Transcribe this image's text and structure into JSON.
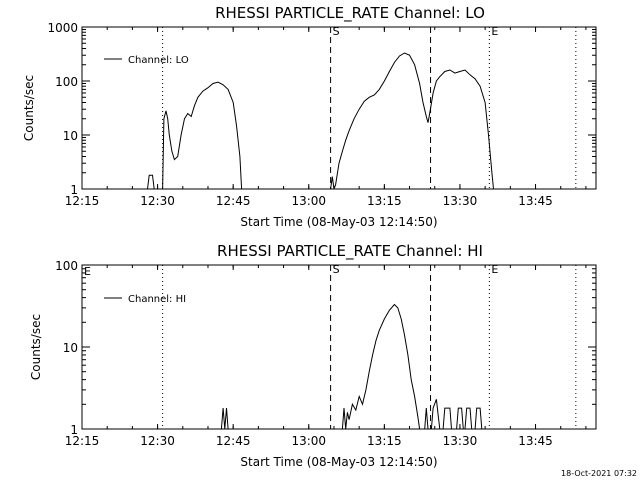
{
  "footer": {
    "timestamp": "18-Oct-2021 07:32"
  },
  "chart_data": [
    {
      "type": "line",
      "title": "RHESSI PARTICLE_RATE Channel: LO",
      "xlabel": "Start Time (08-May-03 12:14:50)",
      "ylabel": "Counts/sec",
      "y_scale": "log",
      "xlim": [
        "12:15",
        "13:57"
      ],
      "ylim": [
        1,
        1000
      ],
      "x_ticks": [
        "12:15",
        "12:30",
        "12:45",
        "13:00",
        "13:15",
        "13:30",
        "13:45"
      ],
      "y_ticks": [
        "1",
        "10",
        "100",
        "1000"
      ],
      "legend": "top-left",
      "series": [
        {
          "name": "Channel: LO",
          "color": "#000000",
          "segments": [
            [
              [
                "12:28:00",
                1
              ],
              [
                "12:28:20",
                1.8
              ],
              [
                "12:29:00",
                1.8
              ],
              [
                "12:29:20",
                1
              ]
            ],
            [
              [
                "12:31:00",
                1
              ],
              [
                "12:31:15",
                20
              ],
              [
                "12:31:40",
                28
              ],
              [
                "12:32:00",
                20
              ],
              [
                "12:32:20",
                10
              ],
              [
                "12:32:50",
                5
              ],
              [
                "12:33:20",
                3.5
              ],
              [
                "12:34:00",
                4
              ],
              [
                "12:34:40",
                10
              ],
              [
                "12:35:20",
                20
              ],
              [
                "12:36:00",
                25
              ],
              [
                "12:36:40",
                22
              ],
              [
                "12:37:20",
                35
              ],
              [
                "12:38:00",
                50
              ],
              [
                "12:39:00",
                65
              ],
              [
                "12:40:00",
                75
              ],
              [
                "12:41:00",
                90
              ],
              [
                "12:42:00",
                95
              ],
              [
                "12:43:00",
                85
              ],
              [
                "12:44:00",
                70
              ],
              [
                "12:45:00",
                40
              ],
              [
                "12:45:40",
                15
              ],
              [
                "12:46:20",
                4
              ],
              [
                "12:46:40",
                1
              ]
            ],
            [
              [
                "13:04:20",
                1
              ],
              [
                "13:04:40",
                1.7
              ],
              [
                "13:05:00",
                1
              ],
              [
                "13:05:20",
                1.2
              ],
              [
                "13:06:00",
                3
              ],
              [
                "13:06:40",
                5
              ],
              [
                "13:07:20",
                8
              ],
              [
                "13:08:00",
                12
              ],
              [
                "13:09:00",
                20
              ],
              [
                "13:10:00",
                30
              ],
              [
                "13:11:00",
                42
              ],
              [
                "13:12:00",
                50
              ],
              [
                "13:13:00",
                55
              ],
              [
                "13:14:00",
                70
              ],
              [
                "13:15:00",
                100
              ],
              [
                "13:16:00",
                150
              ],
              [
                "13:17:00",
                220
              ],
              [
                "13:18:00",
                290
              ],
              [
                "13:19:00",
                330
              ],
              [
                "13:20:00",
                300
              ],
              [
                "13:21:00",
                200
              ],
              [
                "13:22:00",
                90
              ],
              [
                "13:22:40",
                40
              ],
              [
                "13:23:20",
                22
              ],
              [
                "13:23:40",
                17
              ],
              [
                "13:24:00",
                25
              ],
              [
                "13:24:40",
                60
              ],
              [
                "13:25:20",
                100
              ],
              [
                "13:26:00",
                120
              ],
              [
                "13:27:00",
                150
              ],
              [
                "13:28:00",
                160
              ],
              [
                "13:29:00",
                140
              ],
              [
                "13:30:00",
                150
              ],
              [
                "13:31:00",
                160
              ],
              [
                "13:32:00",
                130
              ],
              [
                "13:33:00",
                110
              ],
              [
                "13:34:00",
                80
              ],
              [
                "13:35:00",
                40
              ],
              [
                "13:35:40",
                10
              ],
              [
                "13:36:20",
                2
              ],
              [
                "13:36:40",
                1
              ]
            ]
          ]
        }
      ],
      "vlines": [
        {
          "x": "12:31:00",
          "style": "dotted",
          "label": ""
        },
        {
          "x": "13:04:20",
          "style": "dashed",
          "label": "S"
        },
        {
          "x": "13:24:10",
          "style": "dashed",
          "label": ""
        },
        {
          "x": "13:35:50",
          "style": "dotted",
          "label": "E"
        },
        {
          "x": "13:53:00",
          "style": "dotted",
          "label": ""
        }
      ]
    },
    {
      "type": "line",
      "title": "RHESSI PARTICLE_RATE Channel: HI",
      "xlabel": "Start Time (08-May-03 12:14:50)",
      "ylabel": "Counts/sec",
      "y_scale": "log",
      "xlim": [
        "12:15",
        "13:57"
      ],
      "ylim": [
        1,
        100
      ],
      "x_ticks": [
        "12:15",
        "12:30",
        "12:45",
        "13:00",
        "13:15",
        "13:30",
        "13:45"
      ],
      "y_ticks": [
        "1",
        "10",
        "100"
      ],
      "legend": "top-left",
      "series": [
        {
          "name": "Channel: HI",
          "color": "#000000",
          "segments": [
            [
              [
                "12:42:40",
                1
              ],
              [
                "12:43:00",
                1.8
              ],
              [
                "12:43:20",
                1
              ],
              [
                "12:43:40",
                1.8
              ],
              [
                "12:44:00",
                1
              ]
            ],
            [
              [
                "13:06:40",
                1
              ],
              [
                "13:07:00",
                1.8
              ],
              [
                "13:07:20",
                1
              ],
              [
                "13:07:40",
                1.6
              ],
              [
                "13:08:00",
                1.3
              ],
              [
                "13:08:40",
                2
              ],
              [
                "13:09:20",
                1.7
              ],
              [
                "13:10:00",
                2.5
              ],
              [
                "13:10:40",
                2
              ],
              [
                "13:11:20",
                3
              ],
              [
                "13:12:00",
                5
              ],
              [
                "13:12:40",
                8
              ],
              [
                "13:13:20",
                12
              ],
              [
                "13:14:00",
                16
              ],
              [
                "13:15:00",
                22
              ],
              [
                "13:16:00",
                28
              ],
              [
                "13:17:00",
                33
              ],
              [
                "13:17:40",
                30
              ],
              [
                "13:18:20",
                22
              ],
              [
                "13:19:00",
                14
              ],
              [
                "13:19:40",
                8
              ],
              [
                "13:20:20",
                4
              ],
              [
                "13:21:00",
                2.5
              ],
              [
                "13:21:40",
                1.4
              ],
              [
                "13:22:00",
                1
              ]
            ],
            [
              [
                "13:23:00",
                1
              ],
              [
                "13:23:20",
                1.8
              ],
              [
                "13:23:40",
                1
              ],
              [
                "13:24:20",
                1
              ],
              [
                "13:24:40",
                1.8
              ],
              [
                "13:25:20",
                2.3
              ],
              [
                "13:25:40",
                1.5
              ],
              [
                "13:26:00",
                1
              ]
            ],
            [
              [
                "13:26:40",
                1
              ],
              [
                "13:27:00",
                1.8
              ],
              [
                "13:28:00",
                1.8
              ],
              [
                "13:28:20",
                1
              ]
            ],
            [
              [
                "13:29:20",
                1
              ],
              [
                "13:29:40",
                1.8
              ],
              [
                "13:30:20",
                1.8
              ],
              [
                "13:30:40",
                1
              ]
            ],
            [
              [
                "13:31:00",
                1
              ],
              [
                "13:31:20",
                1.8
              ],
              [
                "13:32:00",
                1.8
              ],
              [
                "13:32:20",
                1
              ]
            ],
            [
              [
                "13:33:00",
                1
              ],
              [
                "13:33:20",
                1.8
              ],
              [
                "13:34:00",
                1.8
              ],
              [
                "13:34:20",
                1
              ]
            ]
          ]
        }
      ],
      "vlines": [
        {
          "x": "12:31:00",
          "style": "dotted",
          "label": ""
        },
        {
          "x": "13:04:20",
          "style": "dashed",
          "label": "S"
        },
        {
          "x": "13:24:10",
          "style": "dashed",
          "label": ""
        },
        {
          "x": "13:35:50",
          "style": "dotted",
          "label": "E"
        },
        {
          "x": "13:53:00",
          "style": "dotted",
          "label": ""
        }
      ],
      "left_edge_marker": "E"
    }
  ]
}
